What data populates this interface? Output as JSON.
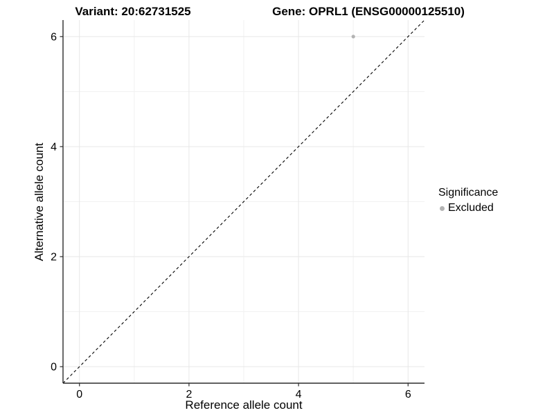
{
  "chart_data": {
    "type": "scatter",
    "titles": {
      "variant": "Variant: 20:62731525",
      "gene": "Gene: OPRL1 (ENSG00000125510)"
    },
    "xlabel": "Reference allele count",
    "ylabel": "Alternative allele count",
    "xlim": [
      -0.3,
      6.3
    ],
    "ylim": [
      -0.3,
      6.3
    ],
    "x_ticks": [
      0,
      2,
      4,
      6
    ],
    "y_ticks": [
      0,
      2,
      4,
      6
    ],
    "x_minor_gridlines": [
      1,
      3,
      5
    ],
    "y_minor_gridlines": [
      1,
      3,
      5
    ],
    "grid": "major+minor",
    "points": [
      {
        "x": 5,
        "y": 6,
        "series": "Excluded"
      }
    ],
    "identity_line": {
      "slope": 1,
      "intercept": 0,
      "style": "dashed"
    },
    "legend": {
      "position": "right",
      "title": "Significance",
      "items": [
        {
          "label": "Excluded",
          "color": "#b3b3b3"
        }
      ]
    },
    "colors": {
      "background": "#ffffff",
      "grid_major": "#e7e7e7",
      "grid_minor": "#f1f1f1",
      "axis_line": "#2b2b2b",
      "tick_text": "#000000",
      "dashed_line": "#000000",
      "point": "#b3b3b3"
    }
  }
}
